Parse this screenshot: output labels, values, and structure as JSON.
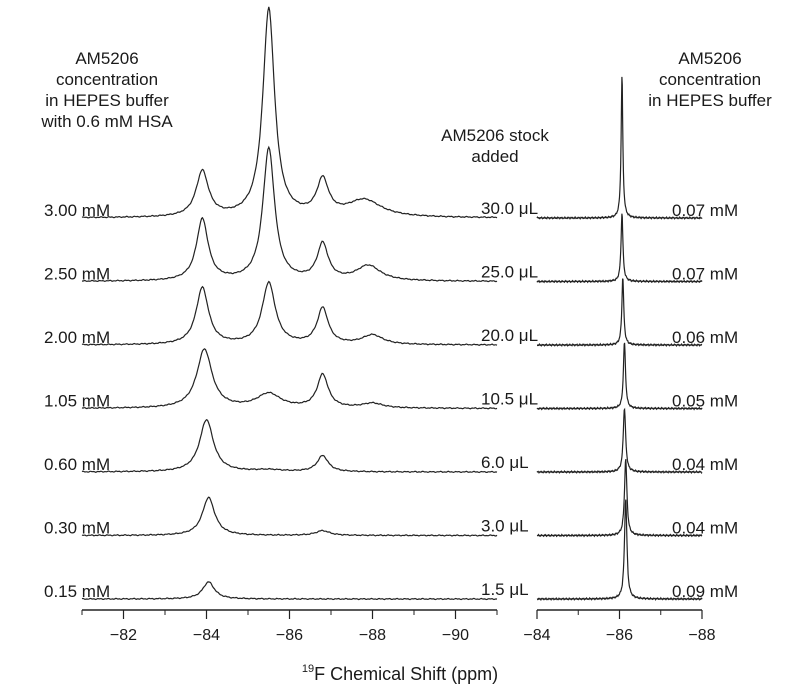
{
  "chart_data": {
    "type": "line",
    "description_axis": "19F NMR spectra stacked by concentration",
    "xlabel_sup": "19",
    "xlabel_main": "F Chemical Shift (ppm)",
    "left_header": "AM5206\nconcentration\nin HEPES buffer\nwith 0.6 mM HSA",
    "mid_header": "AM5206 stock\nadded",
    "right_header": "AM5206\nconcentration\nin HEPES buffer",
    "left_panel": {
      "xlim": [
        -81,
        -91
      ],
      "ticks": [
        "−82",
        "−84",
        "−86",
        "−88",
        "−90"
      ],
      "tick_values": [
        -82,
        -84,
        -86,
        -88,
        -90
      ]
    },
    "right_panel": {
      "xlim": [
        -84,
        -88
      ],
      "ticks": [
        "−84",
        "−86",
        "−88"
      ],
      "tick_values": [
        -84,
        -86,
        -88
      ]
    },
    "series": [
      {
        "name": "3.00 mM",
        "left_label": "3.00 mM",
        "stock_added": "30.0 μL",
        "right_label": "0.07 mM",
        "left_peaks": [
          [
            -83.9,
            0.48,
            0.18
          ],
          [
            -85.5,
            2.2,
            0.17
          ],
          [
            -86.8,
            0.37,
            0.17
          ],
          [
            -87.8,
            0.18,
            0.5
          ]
        ],
        "right_peaks": [
          [
            -86.06,
            1.5,
            0.025
          ]
        ]
      },
      {
        "name": "2.50 mM",
        "left_label": "2.50 mM",
        "stock_added": "25.0 μL",
        "right_label": "0.07 mM",
        "left_peaks": [
          [
            -83.9,
            0.65,
            0.17
          ],
          [
            -85.5,
            1.4,
            0.17
          ],
          [
            -86.8,
            0.38,
            0.16
          ],
          [
            -87.9,
            0.16,
            0.35
          ]
        ],
        "right_peaks": [
          [
            -86.06,
            0.72,
            0.028
          ]
        ]
      },
      {
        "name": "2.00 mM",
        "left_label": "2.00 mM",
        "stock_added": "20.0 μL",
        "right_label": "0.06 mM",
        "left_peaks": [
          [
            -83.9,
            0.6,
            0.18
          ],
          [
            -85.5,
            0.65,
            0.19
          ],
          [
            -86.8,
            0.38,
            0.16
          ],
          [
            -88.0,
            0.1,
            0.3
          ]
        ],
        "right_peaks": [
          [
            -86.08,
            0.72,
            0.028
          ]
        ]
      },
      {
        "name": "1.05 mM",
        "left_label": "1.05 mM",
        "stock_added": "10.5 μL",
        "right_label": "0.05 mM",
        "left_peaks": [
          [
            -83.95,
            0.62,
            0.22
          ],
          [
            -85.5,
            0.15,
            0.35
          ],
          [
            -86.8,
            0.35,
            0.16
          ],
          [
            -88.0,
            0.05,
            0.3
          ]
        ],
        "right_peaks": [
          [
            -86.12,
            0.7,
            0.03
          ]
        ]
      },
      {
        "name": "0.60 mM",
        "left_label": "0.60 mM",
        "stock_added": "6.0 μL",
        "right_label": "0.04 mM",
        "left_peaks": [
          [
            -84.0,
            0.55,
            0.2
          ],
          [
            -85.5,
            0.02,
            0.4
          ],
          [
            -86.8,
            0.17,
            0.16
          ]
        ],
        "right_peaks": [
          [
            -86.12,
            0.67,
            0.035
          ]
        ]
      },
      {
        "name": "0.30 mM",
        "left_label": "0.30 mM",
        "stock_added": "3.0 μL",
        "right_label": "0.04 mM",
        "left_peaks": [
          [
            -84.05,
            0.4,
            0.18
          ],
          [
            -86.8,
            0.05,
            0.2
          ]
        ],
        "right_peaks": [
          [
            -86.15,
            0.8,
            0.035
          ]
        ]
      },
      {
        "name": "0.15 mM",
        "left_label": "0.15 mM",
        "stock_added": "1.5 μL",
        "right_label": "0.09 mM",
        "left_peaks": [
          [
            -84.05,
            0.18,
            0.17
          ]
        ],
        "right_peaks": [
          [
            -86.15,
            1.05,
            0.035
          ]
        ]
      }
    ]
  }
}
